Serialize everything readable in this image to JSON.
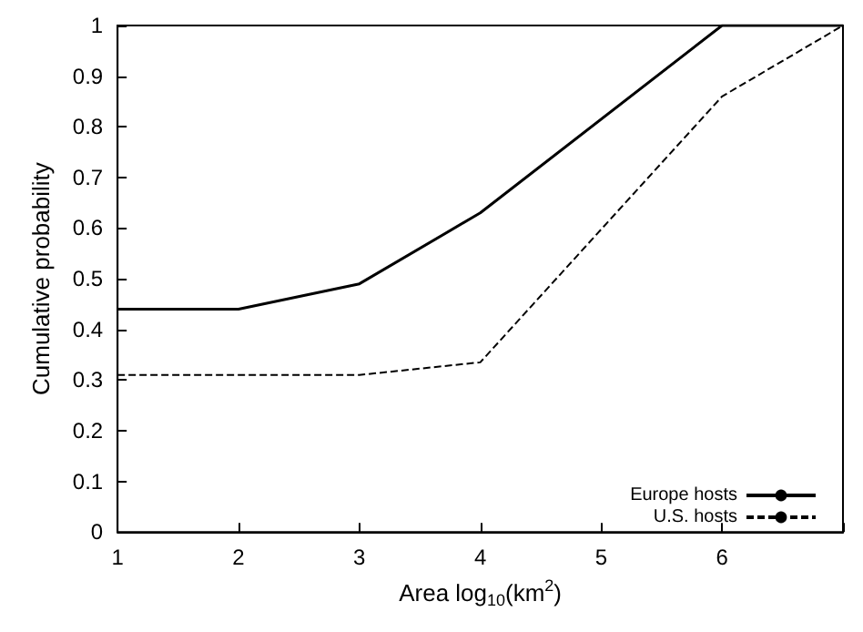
{
  "chart_data": {
    "type": "line",
    "xlabel": "Area log$_{10}$(km$^{2}$)",
    "ylabel": "Cumulative probability",
    "xlim": [
      1,
      7
    ],
    "xticks": [
      1,
      2,
      3,
      4,
      5,
      6,
      {
        "value": 7,
        "label": null
      }
    ],
    "ylim": [
      0,
      1
    ],
    "yticks": [
      0,
      0.1,
      0.2,
      0.3,
      0.4,
      0.5,
      0.6,
      0.7,
      0.8,
      0.9,
      1
    ],
    "grid": false,
    "legend": "bottom right",
    "marker": "none",
    "series": [
      {
        "name": "Europe hosts",
        "color": "#000000",
        "line_style": "solid",
        "x": [
          1,
          2,
          3,
          4,
          6,
          7
        ],
        "values": [
          0.44,
          0.44,
          0.49,
          0.63,
          1,
          1
        ]
      },
      {
        "name": "U.S. hosts",
        "color": "#000000",
        "line_style": "dashed",
        "x": [
          1,
          2,
          3,
          4,
          6,
          7
        ],
        "values": [
          0.31,
          0.31,
          0.31,
          0.335,
          0.86,
          1
        ]
      }
    ]
  }
}
